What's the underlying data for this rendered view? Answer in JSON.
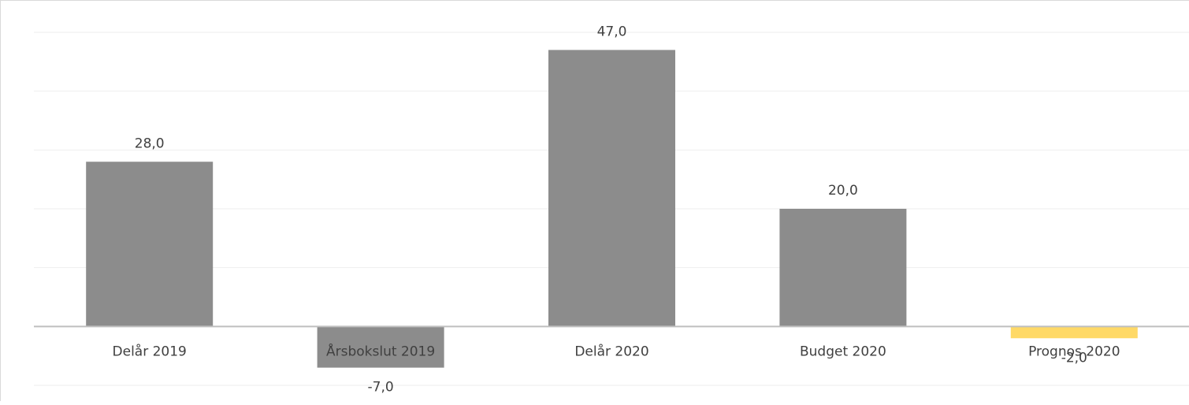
{
  "chart_data": {
    "type": "bar",
    "title": "",
    "xlabel": "",
    "ylabel": "",
    "categories": [
      "Delår 2019",
      "Årsbokslut 2019",
      "Delår 2020",
      "Budget 2020",
      "Prognos 2020"
    ],
    "values": [
      28.0,
      -7.0,
      47.0,
      20.0,
      -2.0
    ],
    "data_labels": [
      "28,0",
      "-7,0",
      "47,0",
      "20,0",
      "-2,0"
    ],
    "ylim": [
      -10,
      50
    ],
    "grid": true,
    "legend": "none",
    "colors": {
      "bar": "#8c8c8c",
      "highlight": "#ffd966",
      "gridline": "#eeeeee",
      "axis": "#bfbfbf",
      "text": "#404040"
    },
    "highlight_index": 4
  }
}
